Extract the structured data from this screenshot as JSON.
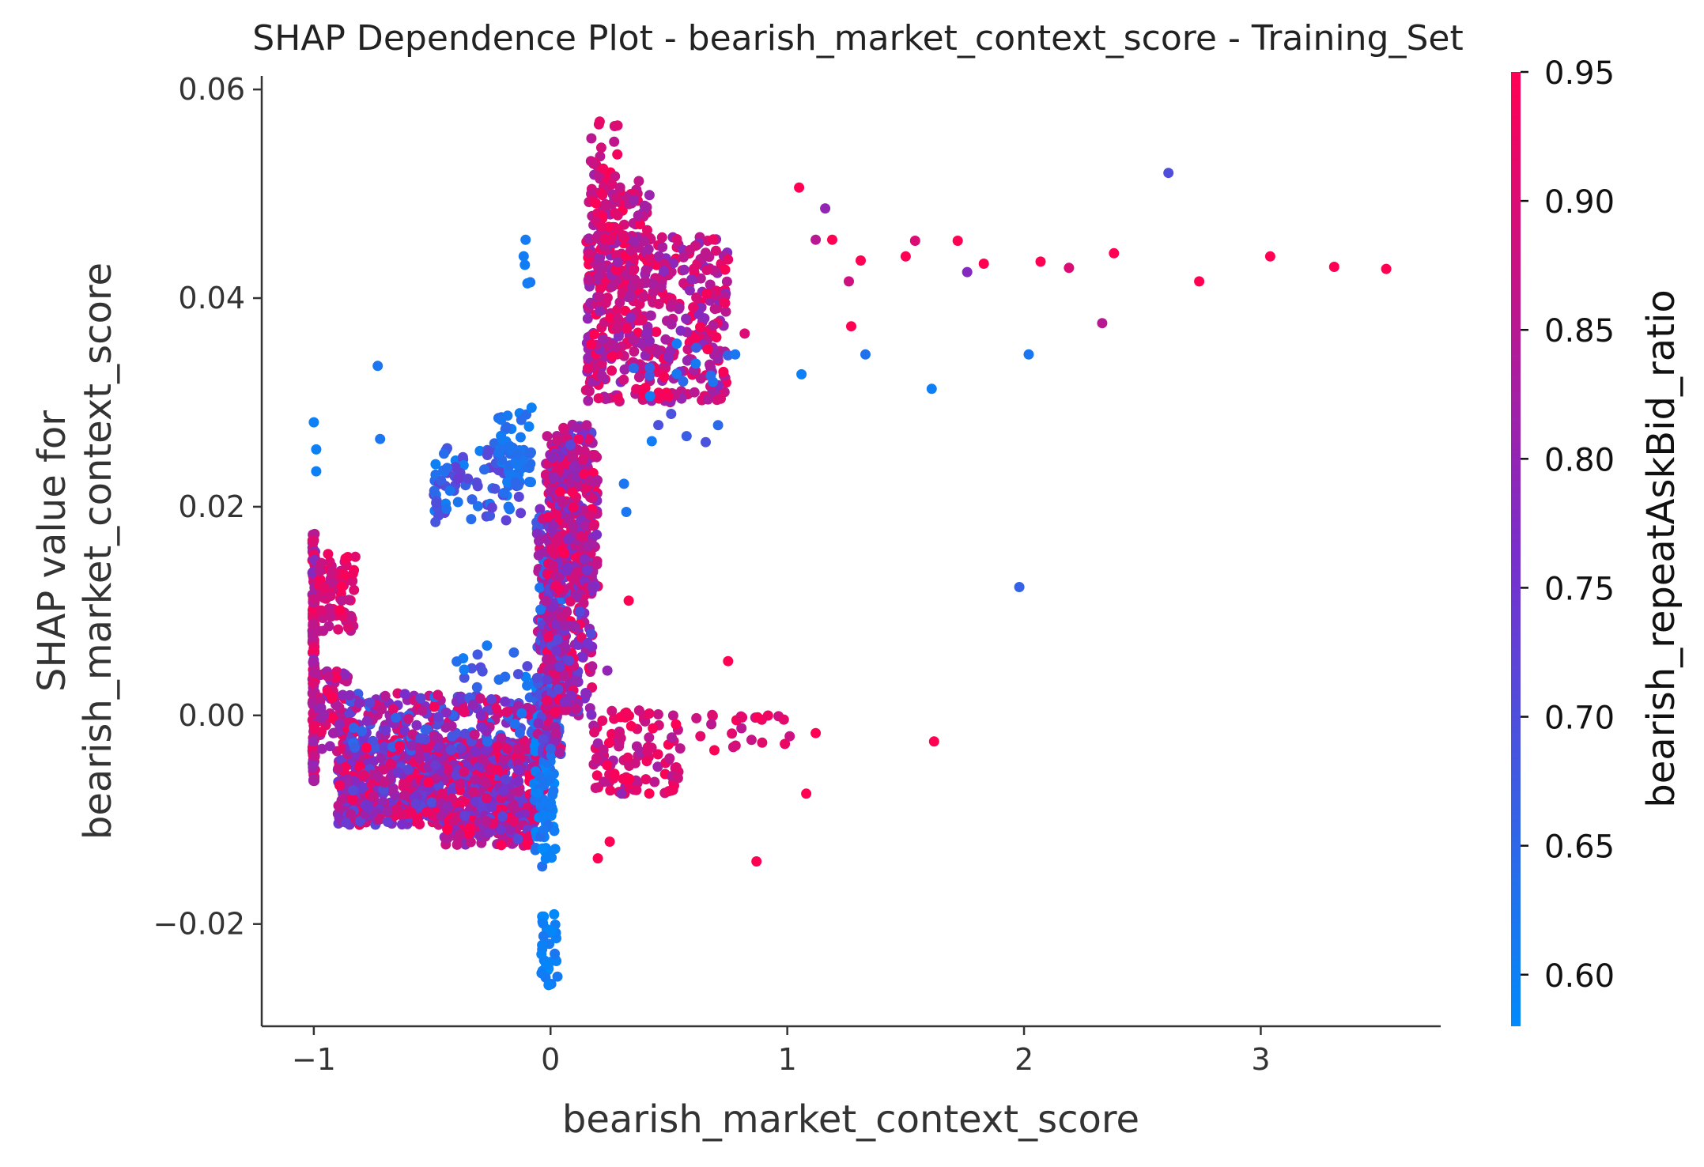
{
  "chart_data": {
    "type": "scatter",
    "title": "SHAP Dependence Plot - bearish_market_context_score - Training_Set",
    "xlabel": "bearish_market_context_score",
    "ylabel_lines": [
      "SHAP value for",
      "bearish_market_context_score"
    ],
    "xlim": [
      -1.22,
      3.76
    ],
    "ylim": [
      -0.0298,
      0.0613
    ],
    "xticks": [
      -1,
      0,
      1,
      2,
      3
    ],
    "xtick_labels": [
      "−1",
      "0",
      "1",
      "2",
      "3"
    ],
    "yticks": [
      -0.02,
      0,
      0.02,
      0.04,
      0.06
    ],
    "ytick_labels": [
      "−0.02",
      "0.00",
      "0.02",
      "0.04",
      "0.06"
    ],
    "colorbar": {
      "label": "bearish_repeatAskBid_ratio",
      "range": [
        0.58,
        0.95
      ],
      "ticks": [
        0.6,
        0.65,
        0.7,
        0.75,
        0.8,
        0.85,
        0.9,
        0.95
      ],
      "tick_labels": [
        "0.60",
        "0.65",
        "0.70",
        "0.75",
        "0.80",
        "0.85",
        "0.90",
        "0.95"
      ],
      "color_low": "#008afb",
      "color_mid": "#7a2ecb",
      "color_high": "#ff0052"
    },
    "grid": false,
    "legend": "none",
    "clusters": [
      {
        "x": [
          -1.0,
          -1.0
        ],
        "y": [
          -0.0065,
          0.0175
        ],
        "c": [
          0.78,
          0.95
        ],
        "n": 180,
        "jx": 0.006
      },
      {
        "x": [
          -0.98,
          -0.82
        ],
        "y": [
          0.008,
          0.0155
        ],
        "c": [
          0.85,
          0.95
        ],
        "n": 70
      },
      {
        "x": [
          -0.98,
          -0.85
        ],
        "y": [
          -0.0035,
          0.0045
        ],
        "c": [
          0.78,
          0.95
        ],
        "n": 70
      },
      {
        "x": [
          -0.9,
          -0.02
        ],
        "y": [
          -0.0105,
          -0.0025
        ],
        "c": [
          0.7,
          0.95
        ],
        "n": 950
      },
      {
        "x": [
          -0.85,
          -0.02
        ],
        "y": [
          -0.0035,
          0.0022
        ],
        "c": [
          0.62,
          0.95
        ],
        "n": 260
      },
      {
        "x": [
          -0.45,
          -0.05
        ],
        "y": [
          -0.0125,
          -0.0095
        ],
        "c": [
          0.7,
          0.95
        ],
        "n": 90
      },
      {
        "x": [
          -0.4,
          -0.05
        ],
        "y": [
          0.0025,
          0.007
        ],
        "c": [
          0.6,
          0.72
        ],
        "n": 18
      },
      {
        "x": [
          -0.5,
          -0.12
        ],
        "y": [
          0.0185,
          0.0262
        ],
        "c": [
          0.6,
          0.74
        ],
        "n": 90
      },
      {
        "x": [
          -0.22,
          -0.08
        ],
        "y": [
          0.022,
          0.029
        ],
        "c": [
          0.6,
          0.65
        ],
        "n": 45
      },
      {
        "x": [
          -0.12,
          -0.08
        ],
        "y": [
          0.04,
          0.0458
        ],
        "c": [
          0.6,
          0.63
        ],
        "n": 5
      },
      {
        "x": [
          -0.07,
          0.02
        ],
        "y": [
          -0.0148,
          0.004
        ],
        "c": [
          0.58,
          0.64
        ],
        "n": 110
      },
      {
        "x": [
          -0.04,
          0.03
        ],
        "y": [
          -0.026,
          -0.019
        ],
        "c": [
          0.58,
          0.62
        ],
        "n": 32
      },
      {
        "x": [
          -0.06,
          0.05
        ],
        "y": [
          -0.004,
          0.02
        ],
        "c": [
          0.62,
          0.92
        ],
        "n": 200
      },
      {
        "x": [
          -0.02,
          0.18
        ],
        "y": [
          0.0,
          0.028
        ],
        "c": [
          0.7,
          0.95
        ],
        "n": 420
      },
      {
        "x": [
          0.0,
          0.2
        ],
        "y": [
          0.012,
          0.025
        ],
        "c": [
          0.75,
          0.95
        ],
        "n": 160
      },
      {
        "x": [
          0.15,
          0.75
        ],
        "y": [
          0.03,
          0.046
        ],
        "c": [
          0.78,
          0.95
        ],
        "n": 450
      },
      {
        "x": [
          0.16,
          0.42
        ],
        "y": [
          0.04,
          0.052
        ],
        "c": [
          0.8,
          0.95
        ],
        "n": 140
      },
      {
        "x": [
          0.17,
          0.32
        ],
        "y": [
          0.045,
          0.057
        ],
        "c": [
          0.85,
          0.95
        ],
        "n": 30
      },
      {
        "x": [
          0.18,
          0.55
        ],
        "y": [
          -0.0075,
          0.0005
        ],
        "c": [
          0.82,
          0.95
        ],
        "n": 110
      },
      {
        "x": [
          0.55,
          1.0
        ],
        "y": [
          -0.0035,
          0.0005
        ],
        "c": [
          0.85,
          0.95
        ],
        "n": 22
      },
      {
        "x": [
          0.3,
          0.8
        ],
        "y": [
          0.026,
          0.036
        ],
        "c": [
          0.6,
          0.7
        ],
        "n": 18
      }
    ],
    "points": [
      {
        "x": 2.61,
        "y": 0.052,
        "c": 0.7
      },
      {
        "x": 3.53,
        "y": 0.0428,
        "c": 0.95
      },
      {
        "x": 3.31,
        "y": 0.043,
        "c": 0.95
      },
      {
        "x": 3.04,
        "y": 0.044,
        "c": 0.95
      },
      {
        "x": 2.74,
        "y": 0.0416,
        "c": 0.95
      },
      {
        "x": 2.38,
        "y": 0.0443,
        "c": 0.95
      },
      {
        "x": 2.19,
        "y": 0.0429,
        "c": 0.9
      },
      {
        "x": 2.07,
        "y": 0.0435,
        "c": 0.95
      },
      {
        "x": 2.33,
        "y": 0.0376,
        "c": 0.85
      },
      {
        "x": 2.02,
        "y": 0.0346,
        "c": 0.62
      },
      {
        "x": 1.98,
        "y": 0.0123,
        "c": 0.66
      },
      {
        "x": 1.83,
        "y": 0.0433,
        "c": 0.95
      },
      {
        "x": 1.76,
        "y": 0.0425,
        "c": 0.78
      },
      {
        "x": 1.72,
        "y": 0.0455,
        "c": 0.95
      },
      {
        "x": 1.61,
        "y": 0.0313,
        "c": 0.6
      },
      {
        "x": 1.62,
        "y": -0.0025,
        "c": 0.95
      },
      {
        "x": 1.54,
        "y": 0.0455,
        "c": 0.9
      },
      {
        "x": 1.5,
        "y": 0.044,
        "c": 0.95
      },
      {
        "x": 1.33,
        "y": 0.0346,
        "c": 0.63
      },
      {
        "x": 1.06,
        "y": 0.0327,
        "c": 0.6
      },
      {
        "x": 1.05,
        "y": 0.0506,
        "c": 0.95
      },
      {
        "x": 1.16,
        "y": 0.0486,
        "c": 0.8
      },
      {
        "x": 1.12,
        "y": 0.0456,
        "c": 0.85
      },
      {
        "x": 1.19,
        "y": 0.0456,
        "c": 0.95
      },
      {
        "x": 1.31,
        "y": 0.0436,
        "c": 0.95
      },
      {
        "x": 1.26,
        "y": 0.0416,
        "c": 0.88
      },
      {
        "x": 1.27,
        "y": 0.0373,
        "c": 0.95
      },
      {
        "x": 1.08,
        "y": -0.0075,
        "c": 0.95
      },
      {
        "x": 1.12,
        "y": -0.0017,
        "c": 0.95
      },
      {
        "x": 1.01,
        "y": -0.002,
        "c": 0.88
      },
      {
        "x": 0.87,
        "y": -0.014,
        "c": 0.95
      },
      {
        "x": 0.75,
        "y": 0.0052,
        "c": 0.95
      },
      {
        "x": 0.82,
        "y": 0.0366,
        "c": 0.9
      },
      {
        "x": 0.78,
        "y": 0.0346,
        "c": 0.62
      },
      {
        "x": 0.31,
        "y": 0.0222,
        "c": 0.62
      },
      {
        "x": 0.32,
        "y": 0.0195,
        "c": 0.62
      },
      {
        "x": 0.33,
        "y": 0.011,
        "c": 0.95
      },
      {
        "x": 0.24,
        "y": 0.0043,
        "c": 0.8
      },
      {
        "x": -0.73,
        "y": 0.0335,
        "c": 0.62
      },
      {
        "x": -0.72,
        "y": 0.0265,
        "c": 0.62
      },
      {
        "x": -1.0,
        "y": 0.0281,
        "c": 0.6
      },
      {
        "x": -0.99,
        "y": 0.0255,
        "c": 0.6
      },
      {
        "x": -0.99,
        "y": 0.0234,
        "c": 0.6
      },
      {
        "x": -0.08,
        "y": 0.0295,
        "c": 0.6
      },
      {
        "x": -0.03,
        "y": -0.011,
        "c": 0.62
      },
      {
        "x": 0.25,
        "y": -0.0121,
        "c": 0.95
      },
      {
        "x": 0.2,
        "y": -0.0137,
        "c": 0.95
      },
      {
        "x": 0.3,
        "y": -0.0075,
        "c": 0.8
      }
    ]
  }
}
